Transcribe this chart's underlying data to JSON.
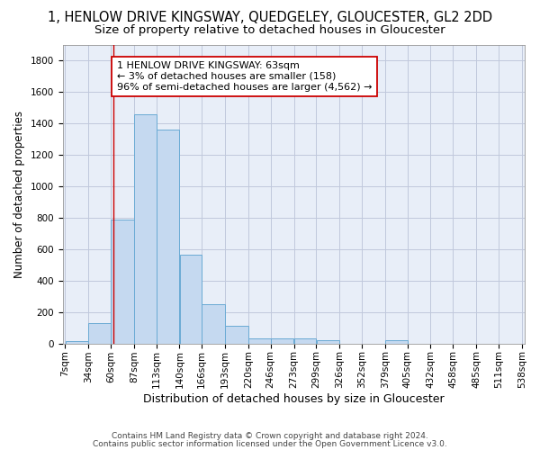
{
  "title": "1, HENLOW DRIVE KINGSWAY, QUEDGELEY, GLOUCESTER, GL2 2DD",
  "subtitle": "Size of property relative to detached houses in Gloucester",
  "xlabel": "Distribution of detached houses by size in Gloucester",
  "ylabel": "Number of detached properties",
  "bar_color": "#c5d9f0",
  "bar_edge_color": "#6aaad4",
  "background_color": "#e8eef8",
  "grid_color": "#c0c8dc",
  "annotation_box_color": "#cc0000",
  "annotation_line1": "1 HENLOW DRIVE KINGSWAY: 63sqm",
  "annotation_line2": "← 3% of detached houses are smaller (158)",
  "annotation_line3": "96% of semi-detached houses are larger (4,562) →",
  "property_line_x": 63,
  "bin_edges": [
    7,
    34,
    60,
    87,
    113,
    140,
    166,
    193,
    220,
    246,
    273,
    299,
    326,
    352,
    379,
    405,
    432,
    458,
    485,
    511,
    538
  ],
  "bin_labels": [
    "7sqm",
    "34sqm",
    "60sqm",
    "87sqm",
    "113sqm",
    "140sqm",
    "166sqm",
    "193sqm",
    "220sqm",
    "246sqm",
    "273sqm",
    "299sqm",
    "326sqm",
    "352sqm",
    "379sqm",
    "405sqm",
    "432sqm",
    "458sqm",
    "485sqm",
    "511sqm",
    "538sqm"
  ],
  "bar_heights": [
    15,
    130,
    790,
    1460,
    1360,
    565,
    250,
    110,
    35,
    30,
    30,
    20,
    0,
    0,
    20,
    0,
    0,
    0,
    0,
    0
  ],
  "ylim": [
    0,
    1900
  ],
  "yticks": [
    0,
    200,
    400,
    600,
    800,
    1000,
    1200,
    1400,
    1600,
    1800
  ],
  "footer_line1": "Contains HM Land Registry data © Crown copyright and database right 2024.",
  "footer_line2": "Contains public sector information licensed under the Open Government Licence v3.0.",
  "title_fontsize": 10.5,
  "subtitle_fontsize": 9.5,
  "xlabel_fontsize": 9,
  "ylabel_fontsize": 8.5,
  "tick_fontsize": 7.5,
  "annotation_fontsize": 8,
  "footer_fontsize": 6.5
}
